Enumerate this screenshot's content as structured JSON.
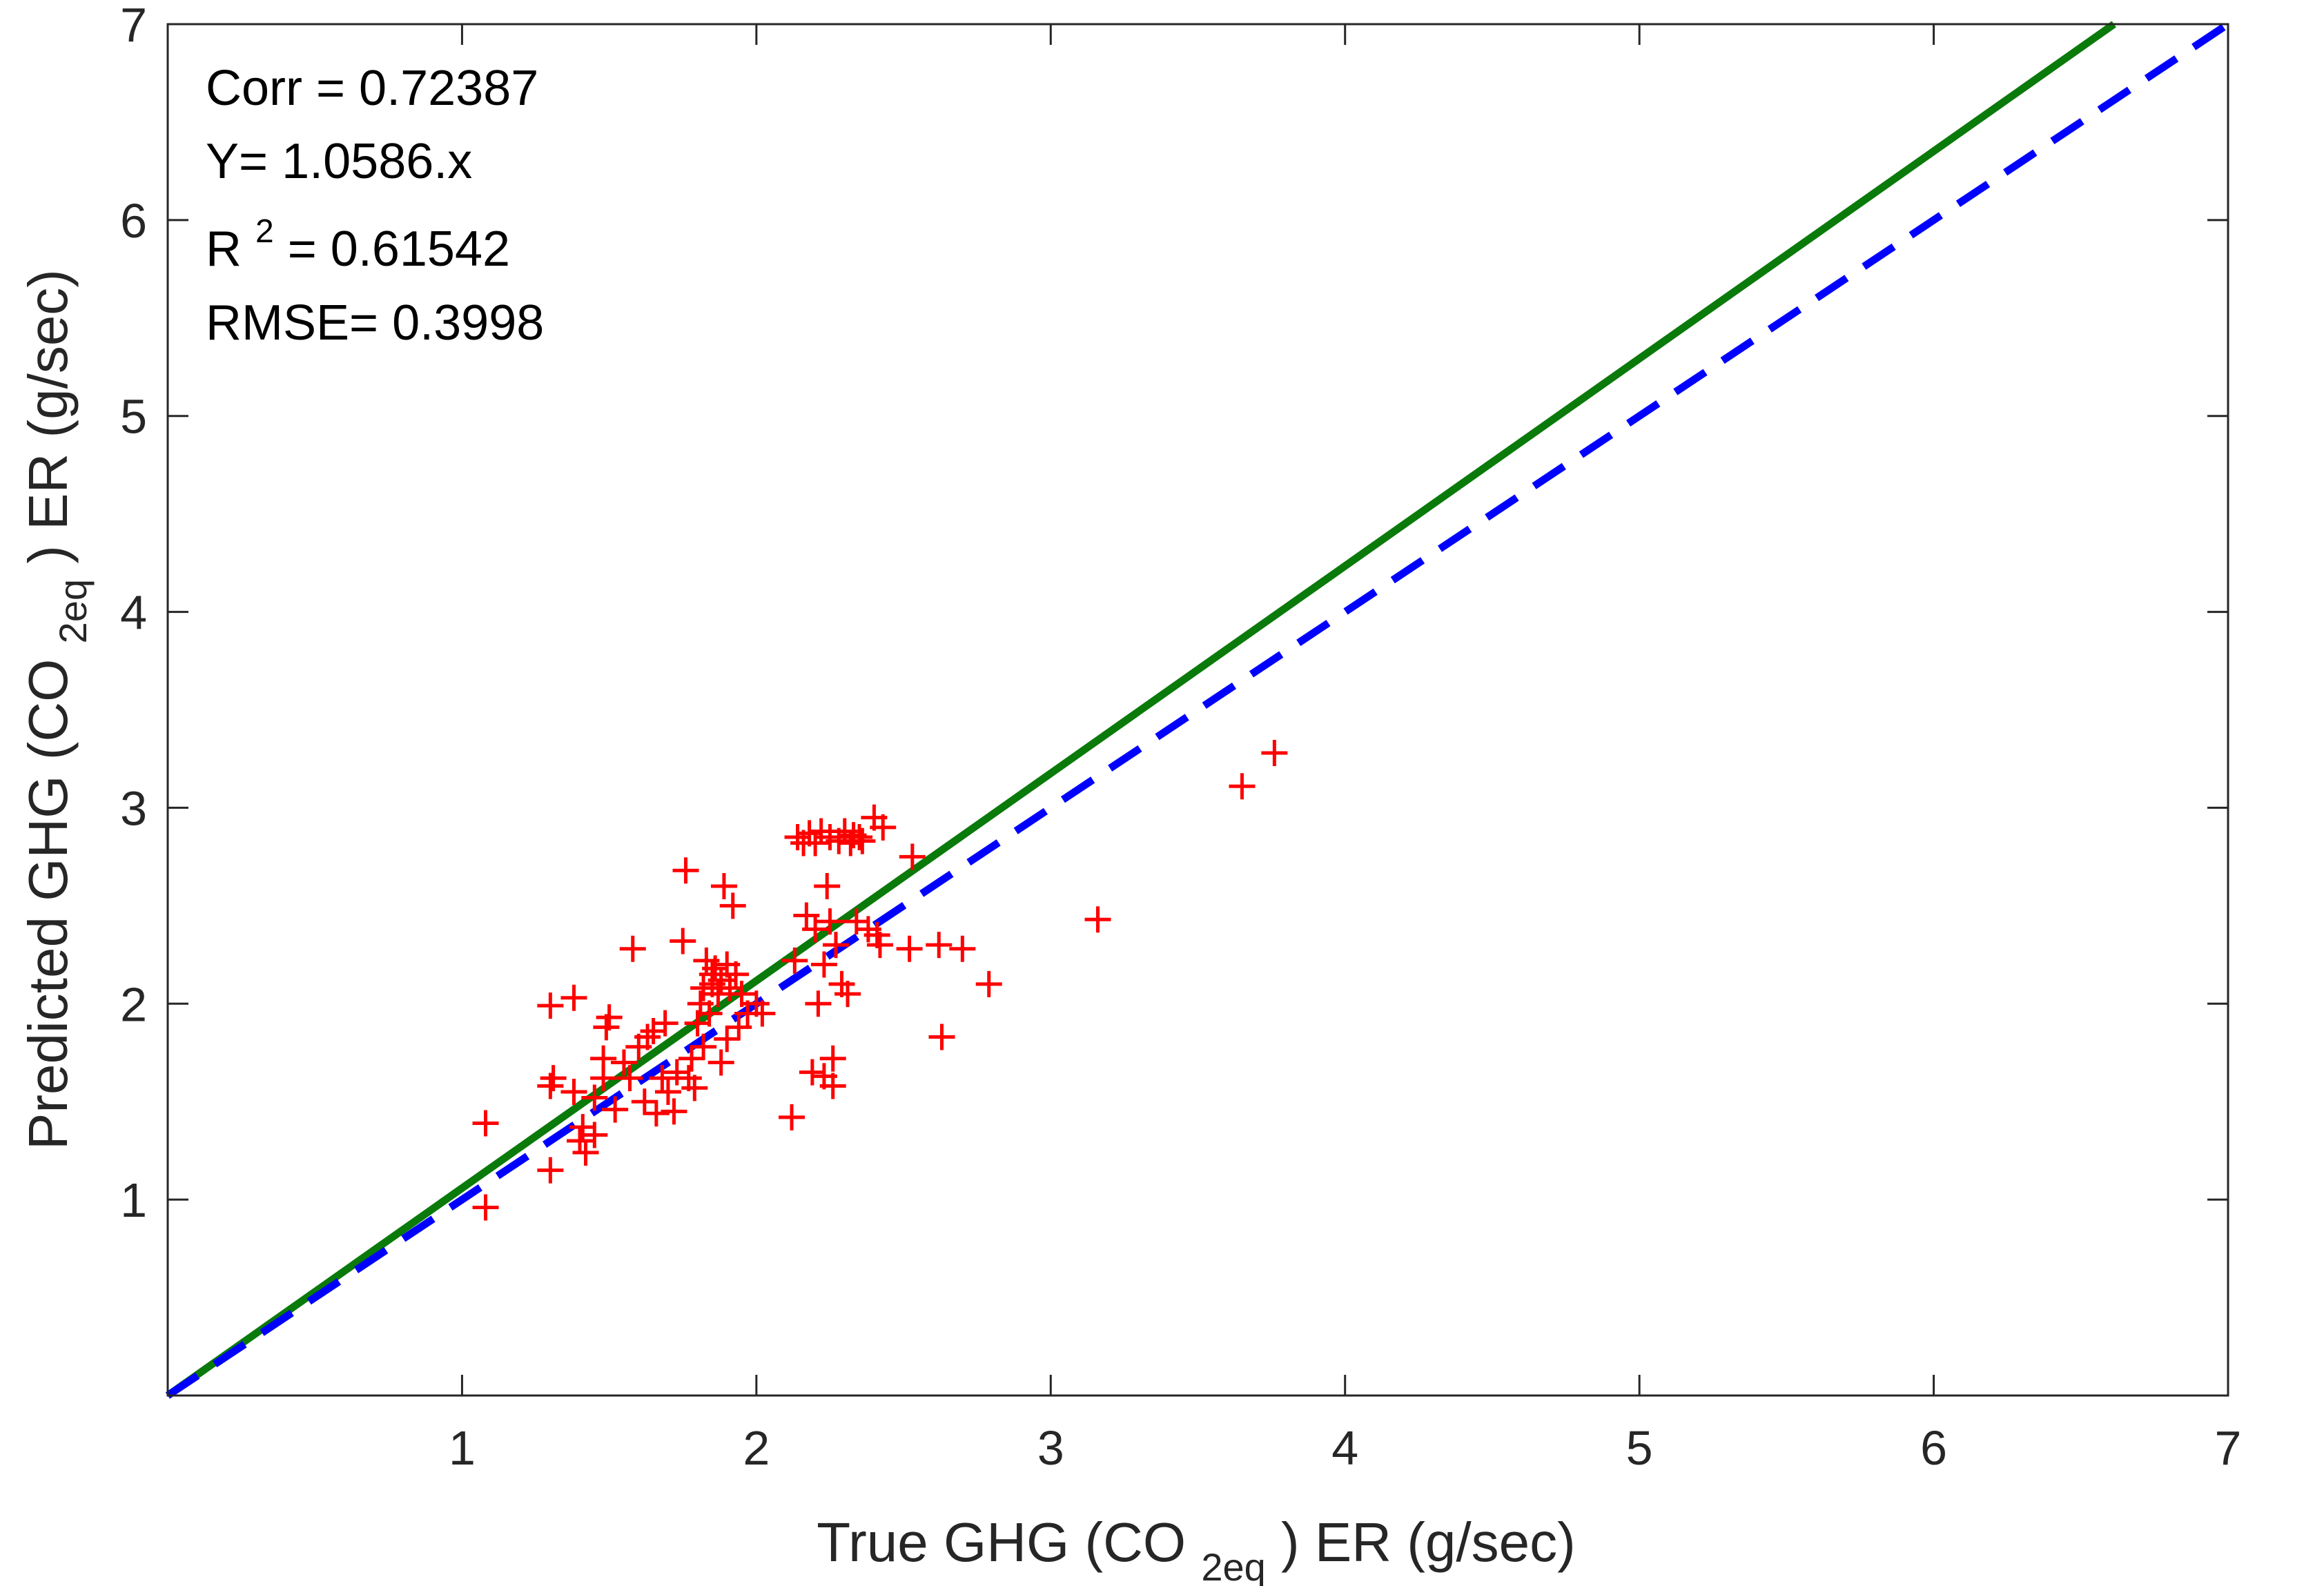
{
  "chart_data": {
    "type": "scatter",
    "xlabel": {
      "prefix": "True GHG (CO",
      "sub": "2eq",
      "suffix": ") ER (g/sec)"
    },
    "ylabel": {
      "prefix": "Predicted GHG (CO",
      "sub": "2eq",
      "suffix": ") ER (g/sec)"
    },
    "xlim": [
      0,
      7
    ],
    "ylim": [
      0,
      7
    ],
    "xticks": [
      "1",
      "2",
      "3",
      "4",
      "5",
      "6",
      "7"
    ],
    "yticks": [
      "1",
      "2",
      "3",
      "4",
      "5",
      "6",
      "7"
    ],
    "grid": false,
    "annotations": {
      "corr": "Corr = 0.72387",
      "fit": "Y= 1.0586.x",
      "r2_prefix": "R",
      "r2_sup": "2",
      "r2_suffix": " = 0.61542",
      "rmse": "RMSE= 0.3998"
    },
    "colors": {
      "points": "#ff0000",
      "fit_line": "#0a7a0a",
      "identity_line": "#0000ff"
    },
    "fit_line": {
      "slope": 1.0586,
      "style": "solid"
    },
    "identity_line": {
      "slope": 1.0,
      "style": "dashed"
    },
    "points": [
      [
        1.08,
        1.39
      ],
      [
        1.08,
        0.96
      ],
      [
        1.3,
        1.15
      ],
      [
        1.3,
        1.58
      ],
      [
        1.31,
        1.62
      ],
      [
        1.3,
        1.99
      ],
      [
        1.38,
        2.03
      ],
      [
        1.38,
        1.55
      ],
      [
        1.4,
        1.3
      ],
      [
        1.41,
        1.37
      ],
      [
        1.42,
        1.24
      ],
      [
        1.45,
        1.33
      ],
      [
        1.45,
        1.52
      ],
      [
        1.48,
        1.62
      ],
      [
        1.48,
        1.72
      ],
      [
        1.49,
        1.88
      ],
      [
        1.5,
        1.93
      ],
      [
        1.52,
        1.46
      ],
      [
        1.55,
        1.7
      ],
      [
        1.57,
        1.62
      ],
      [
        1.58,
        2.28
      ],
      [
        1.6,
        1.78
      ],
      [
        1.62,
        1.5
      ],
      [
        1.63,
        1.83
      ],
      [
        1.65,
        1.86
      ],
      [
        1.66,
        1.44
      ],
      [
        1.68,
        1.62
      ],
      [
        1.69,
        1.9
      ],
      [
        1.7,
        1.55
      ],
      [
        1.72,
        1.45
      ],
      [
        1.73,
        1.65
      ],
      [
        1.75,
        2.32
      ],
      [
        1.76,
        2.68
      ],
      [
        1.77,
        1.62
      ],
      [
        1.78,
        1.72
      ],
      [
        1.79,
        1.57
      ],
      [
        1.8,
        1.9
      ],
      [
        1.81,
        2.0
      ],
      [
        1.82,
        1.78
      ],
      [
        1.82,
        2.08
      ],
      [
        1.83,
        2.22
      ],
      [
        1.84,
        1.95
      ],
      [
        1.85,
        2.1
      ],
      [
        1.85,
        2.15
      ],
      [
        1.86,
        2.18
      ],
      [
        1.87,
        2.05
      ],
      [
        1.88,
        1.7
      ],
      [
        1.88,
        2.12
      ],
      [
        1.89,
        2.6
      ],
      [
        1.9,
        2.2
      ],
      [
        1.9,
        1.82
      ],
      [
        1.91,
        2.08
      ],
      [
        1.92,
        2.5
      ],
      [
        1.93,
        2.15
      ],
      [
        1.94,
        1.88
      ],
      [
        1.95,
        2.05
      ],
      [
        1.97,
        1.95
      ],
      [
        2.0,
        2.0
      ],
      [
        2.02,
        1.95
      ],
      [
        2.12,
        1.42
      ],
      [
        2.13,
        2.22
      ],
      [
        2.14,
        2.85
      ],
      [
        2.16,
        2.82
      ],
      [
        2.17,
        2.45
      ],
      [
        2.18,
        2.87
      ],
      [
        2.19,
        1.65
      ],
      [
        2.2,
        2.82
      ],
      [
        2.2,
        2.38
      ],
      [
        2.21,
        2.0
      ],
      [
        2.22,
        2.88
      ],
      [
        2.23,
        2.2
      ],
      [
        2.23,
        1.63
      ],
      [
        2.24,
        2.6
      ],
      [
        2.25,
        2.85
      ],
      [
        2.25,
        2.42
      ],
      [
        2.26,
        1.58
      ],
      [
        2.26,
        1.72
      ],
      [
        2.27,
        2.3
      ],
      [
        2.28,
        2.83
      ],
      [
        2.29,
        2.1
      ],
      [
        2.3,
        2.88
      ],
      [
        2.31,
        2.05
      ],
      [
        2.32,
        2.82
      ],
      [
        2.33,
        2.86
      ],
      [
        2.34,
        2.42
      ],
      [
        2.35,
        2.85
      ],
      [
        2.36,
        2.83
      ],
      [
        2.38,
        2.38
      ],
      [
        2.4,
        2.95
      ],
      [
        2.41,
        2.35
      ],
      [
        2.42,
        2.3
      ],
      [
        2.43,
        2.9
      ],
      [
        2.52,
        2.28
      ],
      [
        2.53,
        2.75
      ],
      [
        2.62,
        2.3
      ],
      [
        2.63,
        1.83
      ],
      [
        2.7,
        2.28
      ],
      [
        2.79,
        2.1
      ],
      [
        3.16,
        2.43
      ],
      [
        3.65,
        3.11
      ],
      [
        3.76,
        3.28
      ]
    ]
  }
}
